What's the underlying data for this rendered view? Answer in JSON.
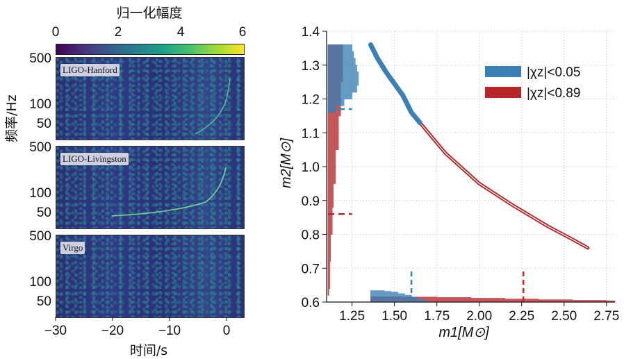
{
  "spectrogram": {
    "colorbar": {
      "title": "归一化幅度",
      "ticks": [
        "0",
        "2",
        "4",
        "6"
      ],
      "range": [
        0,
        6
      ]
    },
    "panels": [
      {
        "label": "LIGO-Hanford",
        "yticks": [
          "500",
          "100",
          "50"
        ]
      },
      {
        "label": "LIGO-Livingston",
        "yticks": [
          "500",
          "100",
          "50"
        ]
      },
      {
        "label": "Virgo",
        "yticks": [
          "500",
          "100",
          "50"
        ]
      }
    ],
    "ylabel": "频率/Hz",
    "xlabel": "时间/s",
    "xticks": [
      "−30",
      "−20",
      "−10",
      "0"
    ],
    "xrange": [
      -30,
      3
    ]
  },
  "chart_data": {
    "type": "scatter",
    "xlabel": "m1[M⊙]",
    "ylabel": "m2[M⊙]",
    "xlim": [
      1.1,
      2.8
    ],
    "ylim": [
      0.6,
      1.4
    ],
    "xticks": [
      1.25,
      1.5,
      1.75,
      2.0,
      2.25,
      2.5,
      2.75
    ],
    "xtick_labels": [
      "1.25",
      "1.50",
      "1.75",
      "2.00",
      "2.25",
      "2.50",
      "2.75"
    ],
    "yticks": [
      0.6,
      0.7,
      0.8,
      0.9,
      1.0,
      1.1,
      1.2,
      1.3,
      1.4
    ],
    "ytick_labels": [
      "0.6",
      "0.7",
      "0.8",
      "0.9",
      "1.0",
      "1.1",
      "1.2",
      "1.3",
      "1.4"
    ],
    "grid": true,
    "legend_position": "top-right",
    "series": [
      {
        "name": "|χz|<0.05",
        "color": "#3a7fb5",
        "curve_m1": [
          1.36,
          1.4,
          1.45,
          1.5,
          1.55,
          1.6,
          1.65
        ],
        "curve_m2": [
          1.36,
          1.32,
          1.28,
          1.245,
          1.21,
          1.16,
          1.13
        ],
        "m2_marginal": {
          "bins": [
            1.36,
            1.34,
            1.32,
            1.3,
            1.28,
            1.26,
            1.24,
            1.22,
            1.2,
            1.18
          ],
          "heights": [
            0.15,
            0.16,
            0.17,
            0.18,
            0.19,
            0.19,
            0.18,
            0.15,
            0.1,
            0.05
          ]
        },
        "m1_marginal": {
          "bins": [
            1.36,
            1.4,
            1.44,
            1.48,
            1.52,
            1.56,
            1.6,
            1.64
          ],
          "heights": [
            0.07,
            0.07,
            0.065,
            0.06,
            0.05,
            0.04,
            0.025,
            0.01
          ]
        },
        "m1_90": 1.6,
        "m2_90": 1.17
      },
      {
        "name": "|χz|<0.89",
        "color": "#b5272b",
        "curve_m1": [
          1.65,
          1.8,
          2.0,
          2.2,
          2.4,
          2.55,
          2.64
        ],
        "curve_m2": [
          1.13,
          1.04,
          0.95,
          0.885,
          0.825,
          0.785,
          0.76
        ],
        "m2_marginal": {
          "bins": [
            1.36,
            1.25,
            1.15,
            1.05,
            0.95,
            0.88,
            0.8,
            0.72,
            0.64
          ],
          "heights": [
            0.07,
            0.06,
            0.05,
            0.035,
            0.025,
            0.02,
            0.012,
            0.008,
            0.004
          ]
        },
        "m1_marginal": {
          "bins": [
            1.36,
            1.55,
            1.75,
            1.95,
            2.15,
            2.35,
            2.55,
            2.75
          ],
          "heights": [
            0.03,
            0.028,
            0.025,
            0.02,
            0.015,
            0.01,
            0.006,
            0.003
          ]
        },
        "m1_90": 2.26,
        "m2_90": 0.86
      }
    ]
  }
}
